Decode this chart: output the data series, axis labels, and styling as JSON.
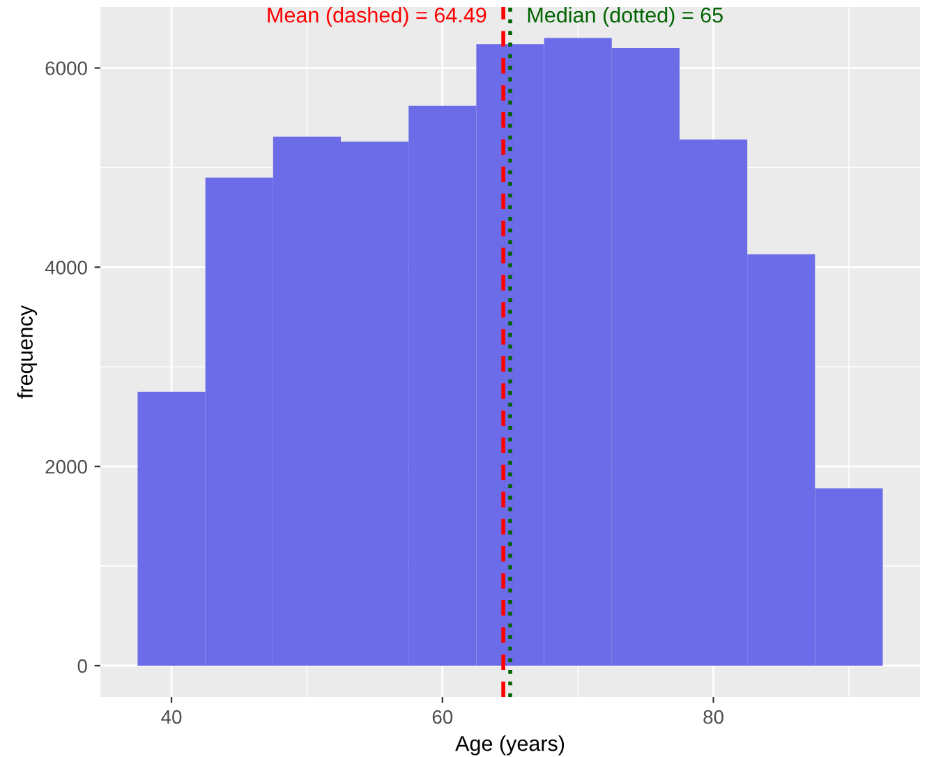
{
  "chart_data": {
    "type": "histogram",
    "xlabel": "Age (years)",
    "ylabel": "frequency",
    "bins": [
      37.5,
      42.5,
      47.5,
      52.5,
      57.5,
      62.5,
      67.5,
      72.5,
      77.5,
      82.5,
      87.5,
      92.5
    ],
    "values": [
      2750,
      4900,
      5310,
      5260,
      5620,
      6240,
      6300,
      6200,
      5280,
      4130,
      1780
    ],
    "color": "#6c6ce9",
    "xlim": [
      34.75,
      95.25
    ],
    "ylim": [
      -315,
      6612
    ],
    "xticks": [
      40,
      60,
      80
    ],
    "yticks": [
      0,
      2000,
      4000,
      6000
    ],
    "grid": true,
    "ref_lines": [
      {
        "axis": "x",
        "value": 64.49,
        "label": "Mean (dashed) = 64.49",
        "color": "#ff0000",
        "line_style": "dashed"
      },
      {
        "axis": "x",
        "value": 65,
        "label": "Median (dotted) = 65",
        "color": "#006400",
        "line_style": "dotted"
      }
    ]
  }
}
